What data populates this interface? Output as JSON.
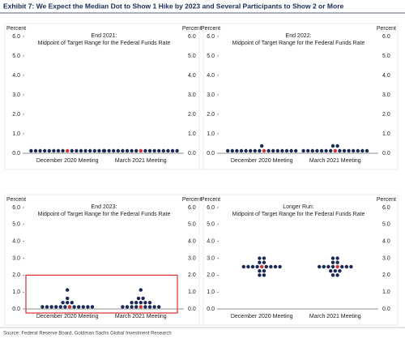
{
  "title": "Exhibit 7: We Expect the Median Dot to Show 1 Hike by 2023 and Several Participants to Show 2 or More",
  "source": "Source: Federal Reserve Board, Goldman Sachs Global Investment Research",
  "chart_data": [
    {
      "type": "dot",
      "title": "End 2021:",
      "subtitle": "Midpoint of Target Range for the Federal Funds Rate",
      "ylabel": "Percent",
      "y2label": "Percent",
      "categories": [
        "December 2020 Meeting",
        "March 2021 Meeting"
      ],
      "values": [
        [
          0.125,
          0.125,
          0.125,
          0.125,
          0.125,
          0.125,
          0.125,
          0.125,
          0.125,
          0.125,
          0.125,
          0.125,
          0.125,
          0.125,
          0.125,
          0.125,
          0.125
        ],
        [
          0.125,
          0.125,
          0.125,
          0.125,
          0.125,
          0.125,
          0.125,
          0.125,
          0.125,
          0.125,
          0.125,
          0.125,
          0.125,
          0.125,
          0.125,
          0.125,
          0.125
        ]
      ],
      "color": "#1b2a55",
      "median_color": "#d42e2e",
      "ylim": [
        0,
        6
      ],
      "yticks": [
        {
          "value": 0,
          "label": "0.0"
        },
        {
          "value": 1,
          "label": "1.0"
        },
        {
          "value": 2,
          "label": "2.0"
        },
        {
          "value": 3,
          "label": "3.0"
        },
        {
          "value": 4,
          "label": "4.0"
        },
        {
          "value": 5,
          "label": "5.0"
        },
        {
          "value": 6,
          "label": "6.0"
        }
      ]
    },
    {
      "type": "dot",
      "title": "End 2022:",
      "subtitle": "Midpoint of Target Range for the Federal Funds Rate",
      "ylabel": "Percent",
      "y2label": "Percent",
      "categories": [
        "December 2020 Meeting",
        "March 2021 Meeting"
      ],
      "values": [
        [
          0.375,
          0.125,
          0.125,
          0.125,
          0.125,
          0.125,
          0.125,
          0.125,
          0.125,
          0.125,
          0.125,
          0.125,
          0.125,
          0.125,
          0.125,
          0.125,
          0.125
        ],
        [
          0.375,
          0.375,
          0.125,
          0.125,
          0.125,
          0.125,
          0.125,
          0.125,
          0.125,
          0.125,
          0.125,
          0.125,
          0.125,
          0.125,
          0.125,
          0.125,
          0.125
        ]
      ],
      "color": "#1b2a55",
      "median_color": "#d42e2e",
      "ylim": [
        0,
        6
      ],
      "yticks": [
        {
          "value": 0,
          "label": "0.0"
        },
        {
          "value": 1,
          "label": "1.0"
        },
        {
          "value": 2,
          "label": "2.0"
        },
        {
          "value": 3,
          "label": "3.0"
        },
        {
          "value": 4,
          "label": "4.0"
        },
        {
          "value": 5,
          "label": "5.0"
        },
        {
          "value": 6,
          "label": "6.0"
        }
      ]
    },
    {
      "type": "dot",
      "title": "End 2023:",
      "subtitle": "Midpoint of Target Range for the Federal Funds Rate",
      "ylabel": "Percent",
      "y2label": "Percent",
      "categories": [
        "December 2020 Meeting",
        "March 2021 Meeting"
      ],
      "values": [
        [
          1.125,
          0.625,
          0.375,
          0.375,
          0.375,
          0.125,
          0.125,
          0.125,
          0.125,
          0.125,
          0.125,
          0.125,
          0.125,
          0.125,
          0.125,
          0.125,
          0.125
        ],
        [
          1.125,
          0.625,
          0.625,
          0.375,
          0.375,
          0.375,
          0.375,
          0.375,
          0.125,
          0.125,
          0.125,
          0.125,
          0.125,
          0.125,
          0.125,
          0.125,
          0.125
        ]
      ],
      "color": "#1b2a55",
      "median_color": "#d42e2e",
      "ylim": [
        0,
        6
      ],
      "yticks": [
        {
          "value": 0,
          "label": "0.0"
        },
        {
          "value": 1,
          "label": "1.0"
        },
        {
          "value": 2,
          "label": "2.0"
        },
        {
          "value": 3,
          "label": "3.0"
        },
        {
          "value": 4,
          "label": "4.0"
        },
        {
          "value": 5,
          "label": "5.0"
        },
        {
          "value": 6,
          "label": "6.0"
        }
      ]
    },
    {
      "type": "dot",
      "title": "Longer Run:",
      "subtitle": "Midpoint of Target Range for the Federal Funds Rate",
      "ylabel": "Percent",
      "y2label": "Percent",
      "categories": [
        "December 2020 Meeting",
        "March 2021 Meeting"
      ],
      "values": [
        [
          3.0,
          3.0,
          2.75,
          2.75,
          2.5,
          2.5,
          2.5,
          2.5,
          2.5,
          2.5,
          2.5,
          2.5,
          2.5,
          2.25,
          2.25,
          2.0,
          2.0
        ],
        [
          3.0,
          3.0,
          2.75,
          2.75,
          2.5,
          2.5,
          2.5,
          2.5,
          2.5,
          2.5,
          2.5,
          2.5,
          2.25,
          2.25,
          2.25,
          2.0,
          2.0
        ]
      ],
      "color": "#1b2a55",
      "median_color": "#d42e2e",
      "ylim": [
        0,
        6
      ],
      "yticks": [
        {
          "value": 0,
          "label": "0.0"
        },
        {
          "value": 1,
          "label": "1.0"
        },
        {
          "value": 2,
          "label": "2.0"
        },
        {
          "value": 3,
          "label": "3.0"
        },
        {
          "value": 4,
          "label": "4.0"
        },
        {
          "value": 5,
          "label": "5.0"
        },
        {
          "value": 6,
          "label": "6.0"
        }
      ]
    }
  ]
}
